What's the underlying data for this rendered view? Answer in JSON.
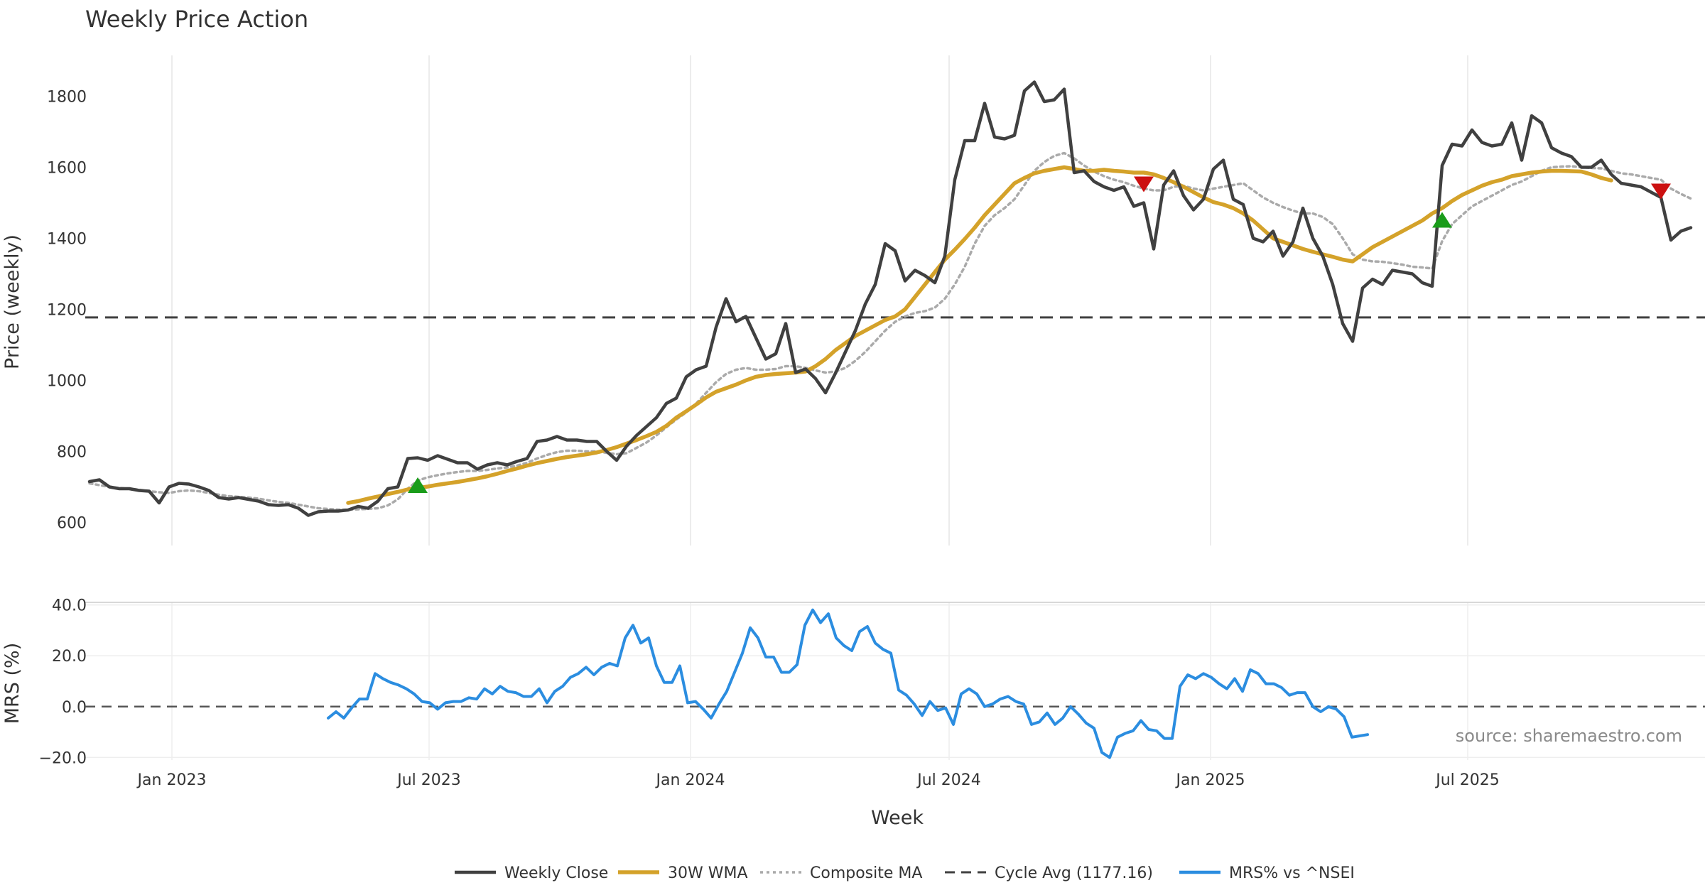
{
  "chart_data": {
    "type": "line",
    "title": "Weekly Price Action",
    "xlabel": "Week",
    "source_note": "source: sharemaestro.com",
    "x_tick_labels": [
      "Jan 2023",
      "Jul 2023",
      "Jan 2024",
      "Jul 2024",
      "Jan 2025",
      "Jul 2025"
    ],
    "x_range": [
      "2022-11-01",
      "2025-12-15"
    ],
    "legend_placement": "bottom-center",
    "grid": true,
    "colors": {
      "close": "#404040",
      "wma": "#d4a22a",
      "composite": "#aaaaaa",
      "cycle": "#404040",
      "mrs": "#2b8de0",
      "buy_marker": "#1a9c1a",
      "sell_marker": "#cc1111"
    },
    "price_panel": {
      "ylabel": "Price (weekly)",
      "ylim": [
        535,
        1915
      ],
      "y_tick_labels": [
        "600",
        "800",
        "1000",
        "1200",
        "1400",
        "1600",
        "1800"
      ],
      "cycle_avg": 1177.16,
      "series": [
        {
          "name": "Weekly Close",
          "key": "close",
          "start": "2022-11-04",
          "step_days": 7,
          "values": [
            715,
            720,
            700,
            695,
            695,
            690,
            688,
            655,
            700,
            710,
            708,
            700,
            690,
            670,
            666,
            670,
            665,
            660,
            650,
            648,
            650,
            640,
            620,
            630,
            632,
            632,
            635,
            645,
            640,
            660,
            695,
            700,
            780,
            782,
            775,
            788,
            778,
            768,
            768,
            750,
            762,
            768,
            762,
            772,
            780,
            828,
            832,
            842,
            832,
            832,
            828,
            828,
            800,
            775,
            815,
            845,
            870,
            895,
            935,
            950,
            1010,
            1030,
            1040,
            1150,
            1230,
            1165,
            1180,
            1120,
            1060,
            1075,
            1160,
            1022,
            1032,
            1005,
            965,
            1020,
            1080,
            1140,
            1215,
            1270,
            1385,
            1365,
            1280,
            1310,
            1295,
            1275,
            1350,
            1565,
            1675,
            1675,
            1780,
            1685,
            1680,
            1690,
            1815,
            1840,
            1785,
            1790,
            1820,
            1585,
            1590,
            1560,
            1545,
            1535,
            1545,
            1490,
            1500,
            1370,
            1550,
            1590,
            1520,
            1480,
            1510,
            1595,
            1620,
            1510,
            1495,
            1400,
            1390,
            1420,
            1350,
            1390,
            1485,
            1400,
            1350,
            1270,
            1160,
            1110,
            1260,
            1285,
            1270,
            1310,
            1305,
            1300,
            1275,
            1265,
            1605,
            1665,
            1660,
            1705,
            1670,
            1660,
            1665,
            1725,
            1620,
            1745,
            1725,
            1655,
            1640,
            1630,
            1600,
            1600,
            1620,
            1580,
            1555,
            1550,
            1545,
            1530,
            1515,
            1395,
            1420,
            1430
          ]
        },
        {
          "name": "30W WMA",
          "key": "wma",
          "start": "2023-05-05",
          "step_days": 7,
          "values": [
            655,
            660,
            667,
            673,
            680,
            686,
            693,
            697,
            701,
            706,
            710,
            714,
            719,
            724,
            730,
            737,
            745,
            752,
            760,
            767,
            773,
            779,
            784,
            788,
            792,
            797,
            804,
            812,
            822,
            832,
            843,
            855,
            872,
            895,
            913,
            932,
            952,
            968,
            978,
            988,
            1000,
            1010,
            1015,
            1018,
            1020,
            1022,
            1025,
            1040,
            1060,
            1085,
            1105,
            1125,
            1140,
            1155,
            1170,
            1180,
            1200,
            1235,
            1270,
            1305,
            1340,
            1368,
            1398,
            1430,
            1465,
            1495,
            1525,
            1555,
            1570,
            1583,
            1590,
            1595,
            1600,
            1595,
            1590,
            1590,
            1593,
            1590,
            1588,
            1585,
            1585,
            1580,
            1570,
            1558,
            1545,
            1530,
            1515,
            1502,
            1495,
            1485,
            1470,
            1450,
            1425,
            1400,
            1390,
            1380,
            1370,
            1362,
            1355,
            1348,
            1340,
            1335,
            1355,
            1375,
            1390,
            1405,
            1420,
            1435,
            1450,
            1470,
            1485,
            1505,
            1522,
            1535,
            1548,
            1558,
            1565,
            1575,
            1580,
            1585,
            1588,
            1590,
            1590,
            1589,
            1588,
            1580,
            1570,
            1563
          ]
        },
        {
          "name": "Composite MA",
          "key": "composite",
          "start": "2022-11-04",
          "step_days": 7,
          "values": [
            710,
            705,
            700,
            697,
            695,
            692,
            688,
            685,
            683,
            688,
            690,
            688,
            683,
            678,
            674,
            672,
            670,
            667,
            662,
            658,
            655,
            650,
            645,
            640,
            638,
            636,
            636,
            637,
            638,
            640,
            648,
            665,
            695,
            718,
            727,
            733,
            738,
            742,
            745,
            745,
            748,
            752,
            755,
            760,
            768,
            780,
            790,
            798,
            802,
            802,
            800,
            800,
            796,
            792,
            795,
            810,
            825,
            845,
            868,
            890,
            910,
            935,
            965,
            995,
            1018,
            1030,
            1035,
            1030,
            1030,
            1032,
            1040,
            1040,
            1035,
            1028,
            1022,
            1025,
            1035,
            1055,
            1080,
            1110,
            1140,
            1165,
            1180,
            1190,
            1195,
            1205,
            1230,
            1270,
            1320,
            1385,
            1435,
            1465,
            1485,
            1510,
            1550,
            1590,
            1615,
            1632,
            1640,
            1625,
            1605,
            1588,
            1575,
            1565,
            1558,
            1548,
            1540,
            1535,
            1535,
            1545,
            1548,
            1540,
            1535,
            1540,
            1545,
            1550,
            1555,
            1535,
            1515,
            1500,
            1488,
            1478,
            1470,
            1470,
            1460,
            1440,
            1400,
            1355,
            1340,
            1335,
            1334,
            1330,
            1326,
            1320,
            1318,
            1315,
            1392,
            1440,
            1465,
            1490,
            1505,
            1520,
            1535,
            1550,
            1560,
            1575,
            1590,
            1600,
            1602,
            1603,
            1600,
            1598,
            1597,
            1590,
            1583,
            1580,
            1575,
            1570,
            1565,
            1540,
            1525,
            1512
          ]
        }
      ],
      "signals": [
        {
          "type": "buy",
          "date": "2023-06-23",
          "value": 705
        },
        {
          "type": "sell",
          "date": "2024-11-15",
          "value": 1552
        },
        {
          "type": "buy",
          "date": "2025-06-13",
          "value": 1452
        },
        {
          "type": "sell",
          "date": "2025-11-14",
          "value": 1532
        }
      ]
    },
    "mrs_panel": {
      "ylabel": "MRS (%)",
      "ylim": [
        -21,
        41
      ],
      "y_tick_labels": [
        "−20.0",
        "0.0",
        "20.0",
        "40.0"
      ],
      "series": [
        {
          "name": "MRS% vs ^NSEI",
          "key": "mrs",
          "start": "2023-04-21",
          "step_days": 5.5,
          "values": [
            -4.5,
            -2,
            -4.5,
            -0.5,
            3,
            3,
            13,
            11,
            9.5,
            8.5,
            7,
            5,
            2,
            1.5,
            -1,
            1.5,
            2,
            2,
            3.5,
            3,
            7,
            5,
            8,
            6,
            5.5,
            4,
            4,
            7,
            1.5,
            6,
            8,
            11.5,
            13,
            15.5,
            12.5,
            15.5,
            17,
            16,
            27,
            32,
            25,
            27,
            16,
            9.5,
            9.5,
            16,
            1.5,
            2,
            -1,
            -4.5,
            1,
            6,
            13.5,
            21,
            31,
            27,
            19.5,
            19.5,
            13.5,
            13.5,
            16.5,
            32,
            38,
            33,
            36.5,
            27,
            24,
            22,
            29.5,
            31.5,
            25,
            22.5,
            21,
            6.5,
            4.5,
            1,
            -3.5,
            2,
            -1.5,
            -0.5,
            -7,
            5,
            7,
            5,
            0,
            1,
            3,
            4,
            2,
            1,
            -7,
            -6,
            -2.5,
            -7,
            -4.5,
            0,
            -3,
            -6.5,
            -8.5,
            -18,
            -20,
            -12,
            -10.5,
            -9.5,
            -5.5,
            -9,
            -9.5,
            -12.5,
            -12.5,
            8,
            12.5,
            11,
            13,
            11.5,
            9,
            7,
            11,
            6,
            14.5,
            13,
            9,
            9,
            7.5,
            4.5,
            5.5,
            5.5,
            0,
            -2,
            0,
            -1,
            -4,
            -12,
            -11.5,
            -11
          ]
        }
      ]
    },
    "legend": [
      {
        "label": "Weekly Close",
        "key": "close",
        "style": "solid"
      },
      {
        "label": "30W WMA",
        "key": "wma",
        "style": "solid"
      },
      {
        "label": "Composite MA",
        "key": "composite",
        "style": "dotted"
      },
      {
        "label": "Cycle Avg (1177.16)",
        "key": "cycle",
        "style": "dashed"
      },
      {
        "label": "MRS% vs ^NSEI",
        "key": "mrs",
        "style": "solid"
      }
    ]
  }
}
